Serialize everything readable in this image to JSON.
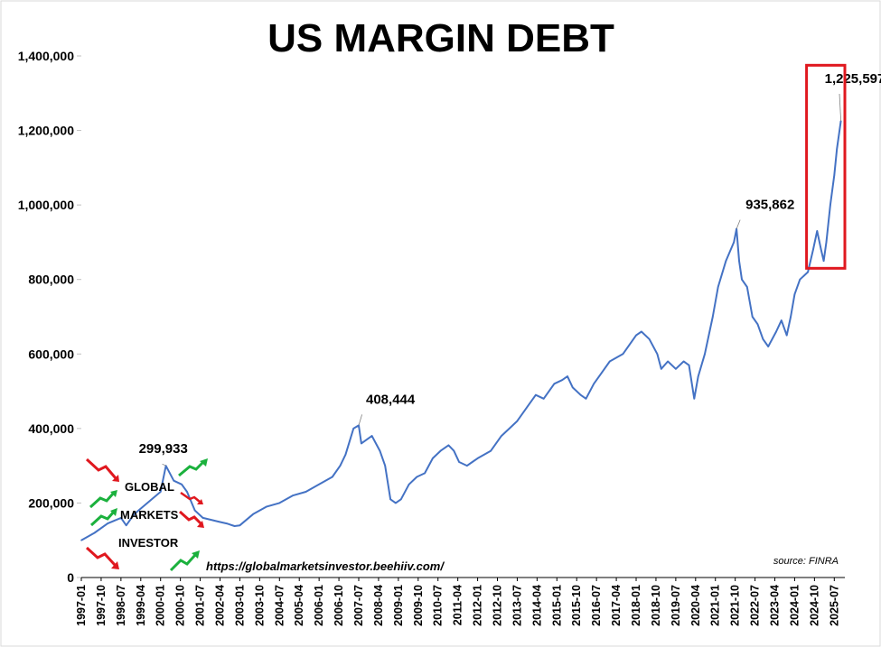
{
  "chart_data": {
    "type": "line",
    "title": "US MARGIN DEBT",
    "xlabel": "",
    "ylabel": "",
    "ylim": [
      0,
      1400000
    ],
    "yticks": [
      "0",
      "200,000",
      "400,000",
      "600,000",
      "800,000",
      "1,000,000",
      "1,200,000",
      "1,400,000"
    ],
    "ytick_values": [
      0,
      200000,
      400000,
      600000,
      800000,
      1000000,
      1200000,
      1400000
    ],
    "xticks": [
      "1997-01",
      "1997-10",
      "1998-07",
      "1999-04",
      "2000-01",
      "2000-10",
      "2001-07",
      "2002-04",
      "2003-01",
      "2003-10",
      "2004-07",
      "2005-04",
      "2006-01",
      "2006-10",
      "2007-07",
      "2008-04",
      "2009-01",
      "2009-10",
      "2010-07",
      "2011-04",
      "2012-01",
      "2012-10",
      "2013-07",
      "2014-04",
      "2015-01",
      "2015-10",
      "2016-07",
      "2017-04",
      "2018-01",
      "2018-10",
      "2019-07",
      "2020-04",
      "2021-01",
      "2021-10",
      "2022-07",
      "2023-04",
      "2024-01",
      "2024-10",
      "2025-07"
    ],
    "series": [
      {
        "name": "US Margin Debt",
        "color": "#4472c4",
        "x": [
          1997.0,
          1997.5,
          1998.0,
          1998.5,
          1998.7,
          1999.0,
          1999.5,
          2000.0,
          2000.2,
          2000.5,
          2000.8,
          2001.0,
          2001.3,
          2001.6,
          2001.9,
          2002.2,
          2002.5,
          2002.8,
          2003.0,
          2003.5,
          2004.0,
          2004.5,
          2005.0,
          2005.5,
          2006.0,
          2006.5,
          2006.8,
          2007.0,
          2007.3,
          2007.5,
          2007.6,
          2007.8,
          2008.0,
          2008.3,
          2008.5,
          2008.7,
          2008.9,
          2009.1,
          2009.4,
          2009.7,
          2010.0,
          2010.3,
          2010.6,
          2010.9,
          2011.1,
          2011.3,
          2011.6,
          2011.8,
          2012.0,
          2012.5,
          2012.9,
          2013.2,
          2013.5,
          2013.9,
          2014.2,
          2014.5,
          2014.9,
          2015.2,
          2015.4,
          2015.6,
          2015.9,
          2016.1,
          2016.4,
          2016.7,
          2017.0,
          2017.5,
          2018.0,
          2018.2,
          2018.5,
          2018.8,
          2018.95,
          2019.2,
          2019.5,
          2019.8,
          2020.0,
          2020.2,
          2020.35,
          2020.6,
          2020.9,
          2021.1,
          2021.4,
          2021.7,
          2021.8,
          2021.9,
          2022.0,
          2022.2,
          2022.4,
          2022.6,
          2022.8,
          2023.0,
          2023.3,
          2023.5,
          2023.7,
          2023.85,
          2024.0,
          2024.2,
          2024.5,
          2024.7,
          2024.85,
          2025.0,
          2025.1,
          2025.2,
          2025.35,
          2025.5,
          2025.6,
          2025.75
        ],
        "values": [
          100000,
          120000,
          145000,
          160000,
          140000,
          170000,
          200000,
          230000,
          299933,
          260000,
          250000,
          230000,
          180000,
          160000,
          155000,
          150000,
          145000,
          138000,
          140000,
          170000,
          190000,
          200000,
          220000,
          230000,
          250000,
          270000,
          300000,
          330000,
          400000,
          408444,
          360000,
          370000,
          380000,
          340000,
          300000,
          210000,
          200000,
          210000,
          250000,
          270000,
          280000,
          320000,
          340000,
          355000,
          340000,
          310000,
          300000,
          310000,
          320000,
          340000,
          380000,
          400000,
          420000,
          460000,
          490000,
          480000,
          520000,
          530000,
          540000,
          510000,
          490000,
          480000,
          520000,
          550000,
          580000,
          600000,
          650000,
          660000,
          640000,
          600000,
          560000,
          580000,
          560000,
          580000,
          570000,
          480000,
          540000,
          600000,
          700000,
          780000,
          850000,
          900000,
          935862,
          850000,
          800000,
          780000,
          700000,
          680000,
          640000,
          620000,
          660000,
          690000,
          650000,
          700000,
          760000,
          800000,
          820000,
          880000,
          930000,
          880000,
          850000,
          900000,
          1000000,
          1080000,
          1150000,
          1225597
        ]
      }
    ],
    "annotations": [
      {
        "label": "299,933",
        "x": 2000.2,
        "y": 299933
      },
      {
        "label": "408,444",
        "x": 2007.5,
        "y": 408444
      },
      {
        "label": "935,862",
        "x": 2021.8,
        "y": 935862
      },
      {
        "label": "1,225,597",
        "x": 2025.75,
        "y": 1225597
      }
    ],
    "highlight": {
      "x_range": [
        2024.45,
        2025.9
      ],
      "y_range": [
        830000,
        1375000
      ],
      "color": "#e0181f"
    }
  },
  "watermark": {
    "logo_lines": [
      "GLOBAL",
      "MARKETS",
      "INVESTOR"
    ],
    "url": "https://globalmarketsinvestor.beehiiv.com/",
    "up_color": "#1bb13d",
    "down_color": "#e0181f"
  },
  "source_note": "source: FINRA"
}
